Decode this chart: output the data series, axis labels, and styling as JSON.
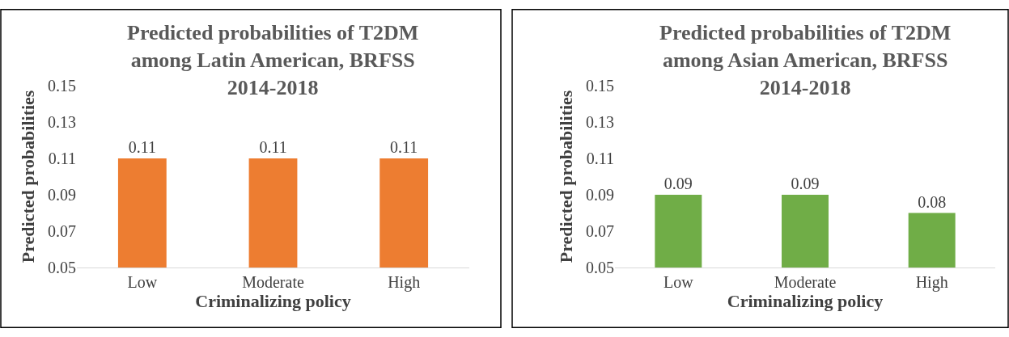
{
  "chart_data": [
    {
      "type": "bar",
      "title": "Predicted probabilities of T2DM\namong Latin American, BRFSS\n2014-2018",
      "xlabel": "Criminalizing policy",
      "ylabel": "Predicted probabilities",
      "categories": [
        "Low",
        "Moderate",
        "High"
      ],
      "values": [
        0.11,
        0.11,
        0.11
      ],
      "color": "#ed7d31",
      "ylim": [
        0.05,
        0.15
      ],
      "yticks": [
        0.05,
        0.07,
        0.09,
        0.11,
        0.13,
        0.15
      ],
      "data_labels": true
    },
    {
      "type": "bar",
      "title": "Predicted probabilities of T2DM\namong Asian American, BRFSS\n2014-2018",
      "xlabel": "Criminalizing policy",
      "ylabel": "Predicted probabilities",
      "categories": [
        "Low",
        "Moderate",
        "High"
      ],
      "values": [
        0.09,
        0.09,
        0.08
      ],
      "color": "#70ad47",
      "ylim": [
        0.05,
        0.15
      ],
      "yticks": [
        0.05,
        0.07,
        0.09,
        0.11,
        0.13,
        0.15
      ],
      "data_labels": true
    }
  ]
}
